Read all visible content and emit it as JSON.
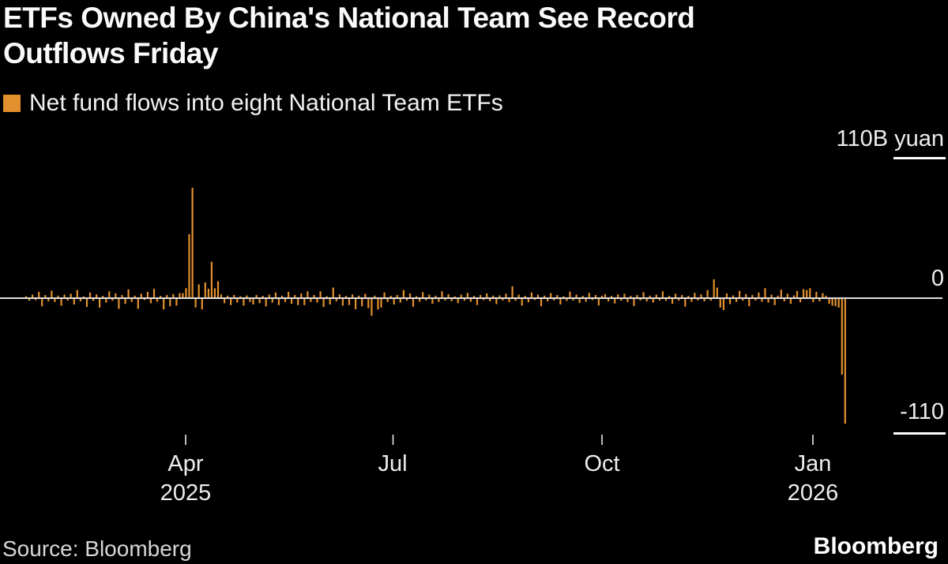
{
  "header": {
    "title": "ETFs Owned By China's National Team See Record\nOutflows Friday"
  },
  "legend": {
    "label": "Net fund flows into eight National Team ETFs",
    "swatch_color": "#E2902E"
  },
  "colors": {
    "background": "#000000",
    "bar": "#E2902E",
    "zero_line": "#DEDEDE",
    "text": "#F5F5F5"
  },
  "source": {
    "label": "Source: Bloomberg"
  },
  "branding": {
    "logo": "Bloomberg"
  },
  "chart_data": {
    "type": "bar",
    "title": "ETFs Owned By China's National Team See Record Outflows Friday",
    "series_label": "Net fund flows into eight National Team ETFs",
    "unit": "billion yuan",
    "bar_color": "#E2902E",
    "ylim": [
      -110,
      110
    ],
    "grid": false,
    "legend_position": "top-left",
    "y_axis": {
      "side": "right",
      "top_label": "110B yuan",
      "zero_label": "0",
      "bottom_label": "-110"
    },
    "x_axis": {
      "frequency": "daily",
      "ticks": [
        {
          "label": "Apr",
          "sublabel": "2025"
        },
        {
          "label": "Jul"
        },
        {
          "label": "Oct"
        },
        {
          "label": "Jan",
          "sublabel": "2026"
        }
      ]
    },
    "values": [
      1.5,
      -2,
      2.8,
      -1.5,
      5,
      -6.5,
      2.5,
      -2.5,
      6,
      -3,
      2,
      -6,
      2.8,
      -1.8,
      3.5,
      -5,
      6.5,
      -2.5,
      1.5,
      -7,
      4.5,
      -2.2,
      3,
      -7.5,
      1.8,
      -3.5,
      5.5,
      -2,
      3.8,
      -8.5,
      2.5,
      -4.5,
      7,
      -3,
      2,
      -8.5,
      3.5,
      -1.5,
      5,
      -4,
      7.5,
      -2.8,
      1.8,
      -9,
      2.5,
      -6.5,
      3.2,
      -6,
      4,
      4,
      8,
      51,
      88,
      -7.5,
      11,
      -9,
      12.5,
      7.5,
      29,
      8,
      13.5,
      3,
      -4,
      2,
      -5.5,
      2.5,
      -3.5,
      1.5,
      -6,
      2.2,
      -3,
      -5,
      2.5,
      -4,
      1.8,
      -6.5,
      2.8,
      -3.5,
      4.5,
      -5.5,
      2,
      -3,
      5,
      -4.5,
      2.5,
      -5.5,
      3.8,
      -5.5,
      5.5,
      -3,
      2.5,
      -3.5,
      5.5,
      -7,
      1.5,
      -5,
      8.5,
      -2.5,
      3,
      -6,
      1.8,
      -5.5,
      3,
      -8.8,
      2,
      -6.5,
      3.5,
      -8,
      -14,
      2,
      -9,
      -7.5,
      4.5,
      -3,
      1.8,
      -5,
      2.5,
      -3.5,
      6.5,
      -2,
      3.8,
      -6.8,
      1.5,
      -2.8,
      4.8,
      -1.8,
      2.8,
      -4.5,
      2,
      -3,
      5.5,
      -1.8,
      3.2,
      -2.5,
      1.5,
      -4,
      2.8,
      -2,
      4.2,
      -2.8,
      1.8,
      -5.5,
      2.5,
      -1.5,
      3.8,
      -2.5,
      2,
      -4.8,
      2.2,
      -1.8,
      3.5,
      -3,
      9.5,
      -2,
      2.8,
      -6,
      1.8,
      -3.2,
      4.5,
      -1.5,
      2.8,
      -6.5,
      2,
      -2.5,
      4,
      -1.8,
      2.5,
      -5,
      1.5,
      -2.2,
      5.2,
      -1.8,
      2.8,
      -3.8,
      1.8,
      -2.8,
      4.2,
      -1.5,
      2.5,
      -5.8,
      2,
      3.2,
      -2.5,
      1.8,
      -4.2,
      3,
      -2,
      3.5,
      -3,
      1.8,
      -6.2,
      2.5,
      -1.8,
      4.8,
      -2.5,
      2,
      -3.5,
      2.8,
      -1.8,
      5.5,
      -2.2,
      1.8,
      -4.5,
      3.5,
      -2,
      2.5,
      -6.8,
      1.8,
      -2.8,
      4.2,
      -1.8,
      3,
      -2.5,
      6.5,
      -2,
      15,
      8.5,
      -7.5,
      -9.5,
      3.8,
      -4.8,
      2.2,
      -3,
      5.8,
      -2,
      3.2,
      -6.5,
      2.5,
      -1.8,
      4.5,
      -2.8,
      8,
      -3.5,
      2.8,
      -5.5,
      2,
      6.8,
      -2.5,
      3.5,
      -4.5,
      2.2,
      5.8,
      -3.2,
      7.2,
      6.5,
      8,
      -3,
      5,
      -2.5,
      4,
      2,
      -4.5,
      -6,
      -6.5,
      -7.5,
      -61,
      -100
    ]
  }
}
